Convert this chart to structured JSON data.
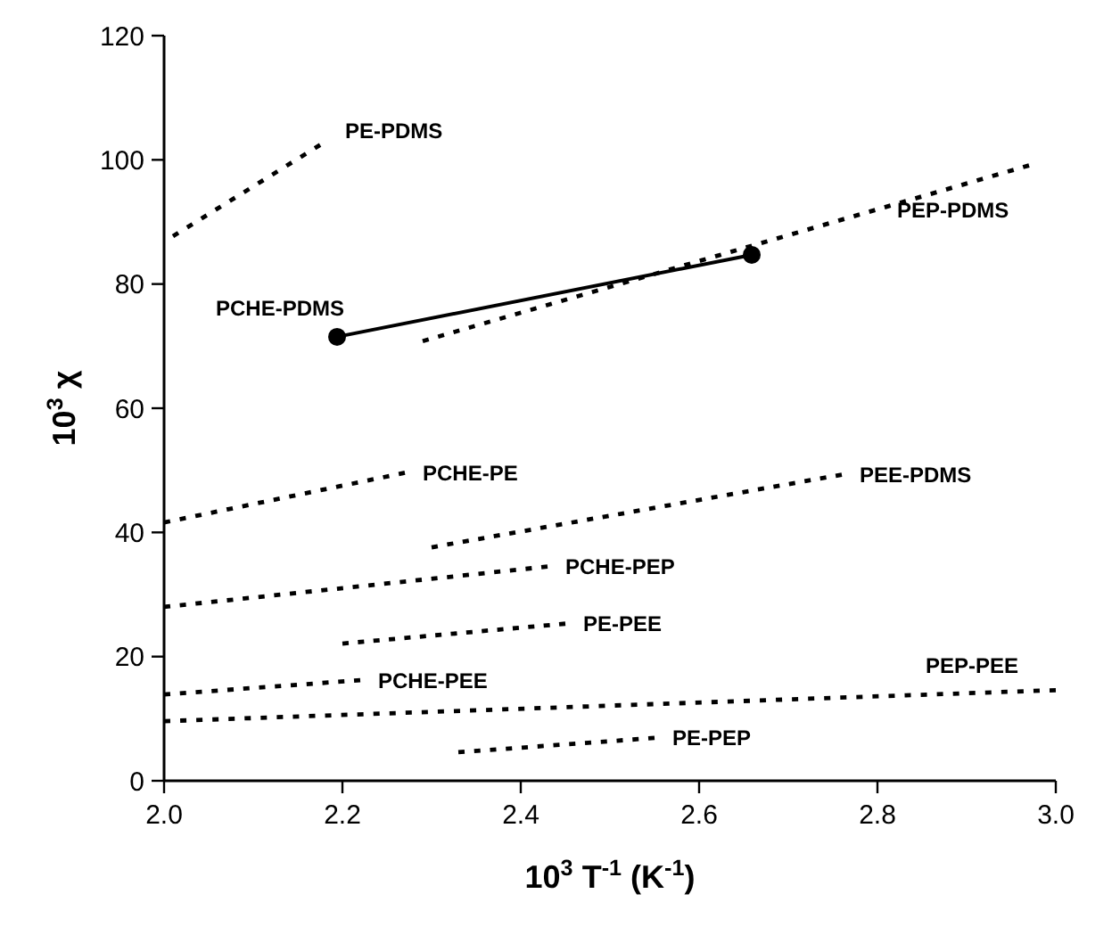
{
  "chart_data": {
    "type": "line",
    "xlabel": "10$^{3}$ T$^{-1}$ (K$^{-1}$)",
    "ylabel": "10$^{3}$ χ",
    "xlim": [
      2.0,
      3.0
    ],
    "xticks": [
      {
        "value": 2.0,
        "label": "2.0"
      },
      {
        "value": 2.2,
        "label": "2.2"
      },
      {
        "value": 2.4,
        "label": "2.4"
      },
      {
        "value": 2.6,
        "label": "2.6"
      },
      {
        "value": 2.8,
        "label": "2.8"
      },
      {
        "value": 3.0,
        "label": "3.0"
      }
    ],
    "ylim": [
      0,
      120
    ],
    "yticks": [
      0,
      20,
      40,
      60,
      80,
      100,
      120
    ],
    "grid": false,
    "series": [
      {
        "name": "PE-PDMS",
        "color": "#000000",
        "line_style": "dashed",
        "marker": "none",
        "x": [
          2.01,
          2.175
        ],
        "values": [
          87.7,
          102.4
        ]
      },
      {
        "name": "PEP-PDMS",
        "color": "#000000",
        "line_style": "dashed",
        "marker": "none",
        "x": [
          2.29,
          2.97
        ],
        "values": [
          70.8,
          99.1
        ]
      },
      {
        "name": "PCHE-PDMS",
        "color": "#000000",
        "line_style": "solid",
        "marker": "circle",
        "x": [
          2.194,
          2.659
        ],
        "values": [
          71.5,
          84.7
        ]
      },
      {
        "name": "PCHE-PE",
        "color": "#000000",
        "line_style": "dashed",
        "marker": "none",
        "x": [
          2.0,
          2.27
        ],
        "values": [
          41.6,
          49.6
        ]
      },
      {
        "name": "PEE-PDMS",
        "color": "#000000",
        "line_style": "dashed",
        "marker": "none",
        "x": [
          2.3,
          2.76
        ],
        "values": [
          37.6,
          49.3
        ]
      },
      {
        "name": "PCHE-PEP",
        "color": "#000000",
        "line_style": "dashed",
        "marker": "none",
        "x": [
          2.0,
          2.43
        ],
        "values": [
          28.0,
          34.5
        ]
      },
      {
        "name": "PE-PEE",
        "color": "#000000",
        "line_style": "dashed",
        "marker": "none",
        "x": [
          2.2,
          2.45
        ],
        "values": [
          22.1,
          25.3
        ]
      },
      {
        "name": "PCHE-PEE",
        "color": "#000000",
        "line_style": "dashed",
        "marker": "none",
        "x": [
          2.0,
          2.22
        ],
        "values": [
          13.9,
          16.2
        ]
      },
      {
        "name": "PEP-PEE",
        "color": "#000000",
        "line_style": "dashed",
        "marker": "none",
        "x": [
          2.0,
          3.0
        ],
        "values": [
          9.6,
          14.6
        ]
      },
      {
        "name": "PE-PEP",
        "color": "#000000",
        "line_style": "dashed",
        "marker": "none",
        "x": [
          2.33,
          2.55
        ],
        "values": [
          4.6,
          6.9
        ]
      }
    ]
  }
}
